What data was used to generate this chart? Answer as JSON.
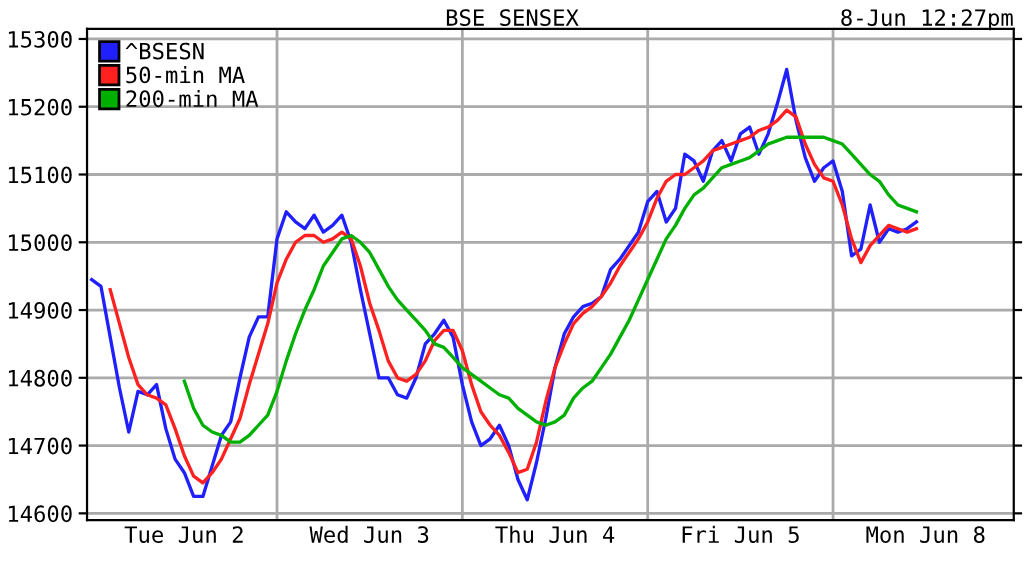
{
  "chart_data": {
    "type": "line",
    "title": "BSE SENSEX",
    "annotations": [
      "8-Jun 12:27pm"
    ],
    "categories": [
      null,
      null,
      null,
      null,
      null,
      null,
      null,
      null,
      null,
      null,
      "Tue Jun 2",
      null,
      null,
      null,
      null,
      null,
      null,
      null,
      null,
      null,
      null,
      null,
      null,
      null,
      null,
      null,
      null,
      null,
      null,
      null,
      "Wed Jun 3",
      null,
      null,
      null,
      null,
      null,
      null,
      null,
      null,
      null,
      null,
      null,
      null,
      null,
      null,
      null,
      null,
      null,
      null,
      null,
      "Thu Jun 4",
      null,
      null,
      null,
      null,
      null,
      null,
      null,
      null,
      null,
      null,
      null,
      null,
      null,
      null,
      null,
      null,
      null,
      null,
      null,
      "Fri Jun 5",
      null,
      null,
      null,
      null,
      null,
      null,
      null,
      null,
      null,
      null,
      null,
      null,
      null,
      null,
      null,
      null,
      null,
      null,
      null,
      "Mon Jun 8",
      null,
      null,
      null,
      null,
      null,
      null,
      null,
      null,
      null
    ],
    "ylim": [
      14590,
      15315
    ],
    "yticks": [
      14600,
      14700,
      14800,
      14900,
      15000,
      15100,
      15200,
      15300
    ],
    "grid": "y",
    "legend": "top left",
    "marker": "none",
    "line_style": "solid",
    "series": [
      {
        "name": "^BSESN",
        "color": "#2020ff",
        "values": [
          14945,
          14935,
          14860,
          14785,
          14720,
          14780,
          14775,
          14790,
          14725,
          14680,
          14660,
          14625,
          14625,
          14670,
          14715,
          14735,
          14800,
          14860,
          14890,
          14890,
          15005,
          15045,
          15030,
          15020,
          15040,
          15015,
          15025,
          15040,
          15000,
          14930,
          14865,
          14800,
          14800,
          14775,
          14770,
          14800,
          14850,
          14865,
          14885,
          14860,
          14790,
          14735,
          14700,
          14710,
          14730,
          14700,
          14650,
          14620,
          14675,
          14740,
          14815,
          14865,
          14890,
          14905,
          14910,
          14920,
          14960,
          14975,
          14995,
          15015,
          15060,
          15075,
          15030,
          15050,
          15130,
          15120,
          15090,
          15135,
          15150,
          15120,
          15160,
          15170,
          15130,
          15160,
          15205,
          15255,
          15180,
          15125,
          15090,
          15110,
          15120,
          15075,
          14980,
          14990,
          15055,
          15000,
          15020,
          15015,
          15020,
          15030,
          null,
          null,
          null,
          null,
          null,
          null,
          null,
          null,
          null,
          null
        ]
      },
      {
        "name": "50-min MA",
        "color": "#ff2020",
        "values": [
          null,
          null,
          14930,
          14880,
          14830,
          14790,
          14775,
          14770,
          14760,
          14725,
          14685,
          14655,
          14645,
          14660,
          14680,
          14710,
          14740,
          14790,
          14835,
          14880,
          14940,
          14975,
          15000,
          15010,
          15010,
          15000,
          15005,
          15015,
          15005,
          14965,
          14910,
          14870,
          14825,
          14800,
          14795,
          14805,
          14825,
          14855,
          14870,
          14870,
          14840,
          14790,
          14750,
          14730,
          14715,
          14690,
          14660,
          14665,
          14705,
          14765,
          14815,
          14850,
          14880,
          14895,
          14905,
          14920,
          14940,
          14965,
          14985,
          15005,
          15030,
          15065,
          15090,
          15100,
          15100,
          15110,
          15120,
          15135,
          15140,
          15145,
          15150,
          15155,
          15165,
          15170,
          15180,
          15195,
          15185,
          15145,
          15115,
          15095,
          15090,
          15055,
          15005,
          14970,
          14995,
          15010,
          15025,
          15020,
          15015,
          15020,
          null,
          null,
          null,
          null,
          null,
          null,
          null,
          null,
          null,
          null
        ]
      },
      {
        "name": "200-min MA",
        "color": "#00b000",
        "values": [
          null,
          null,
          null,
          null,
          null,
          null,
          null,
          null,
          null,
          null,
          14795,
          14755,
          14730,
          14720,
          14715,
          14705,
          14705,
          14715,
          14730,
          14745,
          14780,
          14825,
          14865,
          14900,
          14930,
          14965,
          14985,
          15005,
          15010,
          15000,
          14985,
          14960,
          14935,
          14915,
          14900,
          14885,
          14870,
          14850,
          14845,
          14830,
          14815,
          14805,
          14795,
          14785,
          14775,
          14770,
          14755,
          14745,
          14735,
          14730,
          14735,
          14745,
          14770,
          14785,
          14795,
          14815,
          14835,
          14860,
          14885,
          14915,
          14945,
          14975,
          15005,
          15025,
          15050,
          15070,
          15080,
          15095,
          15110,
          15115,
          15120,
          15125,
          15135,
          15145,
          15150,
          15155,
          15155,
          15155,
          15155,
          15155,
          15150,
          15145,
          15130,
          15115,
          15100,
          15090,
          15070,
          15055,
          15050,
          15045,
          null,
          null,
          null,
          null,
          null,
          null,
          null,
          null,
          null,
          null
        ]
      }
    ]
  }
}
